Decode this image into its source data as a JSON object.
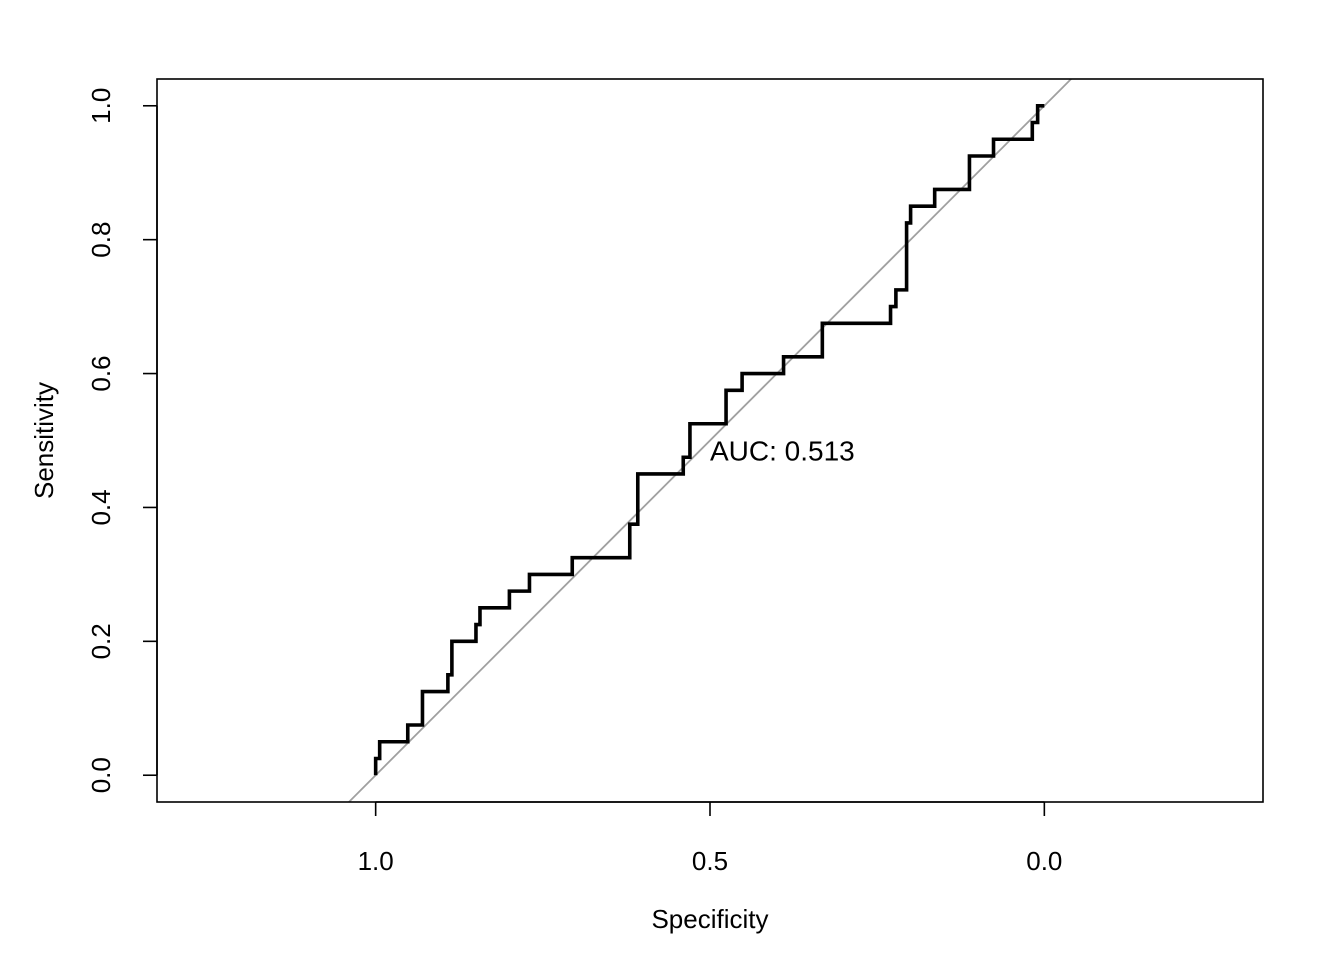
{
  "chart_data": {
    "type": "line",
    "xlabel": "Specificity",
    "ylabel": "Sensitivity",
    "x_axis_reversed": true,
    "xlim": [
      1.327,
      -0.327
    ],
    "ylim": [
      -0.04,
      1.04
    ],
    "x_ticks": [
      1.0,
      0.5,
      0.0
    ],
    "x_tick_labels": [
      "1.0",
      "0.5",
      "0.0"
    ],
    "y_ticks": [
      0.0,
      0.2,
      0.4,
      0.6,
      0.8,
      1.0
    ],
    "y_tick_labels": [
      "0.0",
      "0.2",
      "0.4",
      "0.6",
      "0.8",
      "1.0"
    ],
    "grid": false,
    "annotation": "AUC: 0.513",
    "colors": {
      "roc_curve": "#000000",
      "diagonal": "#a0a0a0",
      "frame": "#000000"
    },
    "series": [
      {
        "specificity": [
          1.0,
          1.0,
          0.994,
          0.994,
          0.952,
          0.952,
          0.93,
          0.93,
          0.892,
          0.892,
          0.886,
          0.886,
          0.85,
          0.85,
          0.844,
          0.844,
          0.8,
          0.8,
          0.77,
          0.77,
          0.706,
          0.706,
          0.62,
          0.62,
          0.608,
          0.608,
          0.54,
          0.54,
          0.53,
          0.53,
          0.476,
          0.476,
          0.452,
          0.452,
          0.39,
          0.39,
          0.332,
          0.332,
          0.23,
          0.23,
          0.222,
          0.222,
          0.206,
          0.206,
          0.2,
          0.2,
          0.164,
          0.164,
          0.112,
          0.112,
          0.076,
          0.076,
          0.018,
          0.018,
          0.01,
          0.01,
          0.0
        ],
        "sensitivity": [
          0.0,
          0.025,
          0.025,
          0.05,
          0.05,
          0.075,
          0.075,
          0.125,
          0.125,
          0.15,
          0.15,
          0.2,
          0.2,
          0.225,
          0.225,
          0.25,
          0.25,
          0.275,
          0.275,
          0.3,
          0.3,
          0.325,
          0.325,
          0.375,
          0.375,
          0.45,
          0.45,
          0.475,
          0.475,
          0.525,
          0.525,
          0.575,
          0.575,
          0.6,
          0.6,
          0.625,
          0.625,
          0.675,
          0.675,
          0.7,
          0.7,
          0.725,
          0.725,
          0.825,
          0.825,
          0.85,
          0.85,
          0.875,
          0.875,
          0.925,
          0.925,
          0.95,
          0.95,
          0.975,
          0.975,
          1.0,
          1.0
        ]
      }
    ],
    "reference_line": {
      "slope_sens_vs_spec": -1,
      "intercept": 1
    }
  }
}
